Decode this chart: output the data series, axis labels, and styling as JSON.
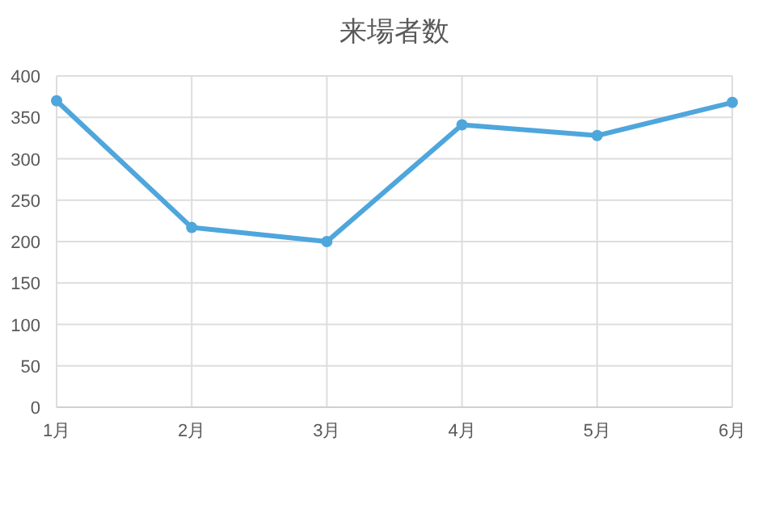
{
  "chart_data": {
    "type": "line",
    "title": "来場者数",
    "categories": [
      "1月",
      "2月",
      "3月",
      "4月",
      "5月",
      "6月"
    ],
    "series": [
      {
        "color": "#4ea6dc",
        "values": [
          370,
          217,
          200,
          341,
          328,
          368
        ]
      }
    ],
    "ylim": [
      0,
      400
    ],
    "yticks": [
      0,
      50,
      100,
      150,
      200,
      250,
      300,
      350,
      400
    ],
    "grid": true,
    "marker": "circle",
    "line_style": "solid"
  }
}
